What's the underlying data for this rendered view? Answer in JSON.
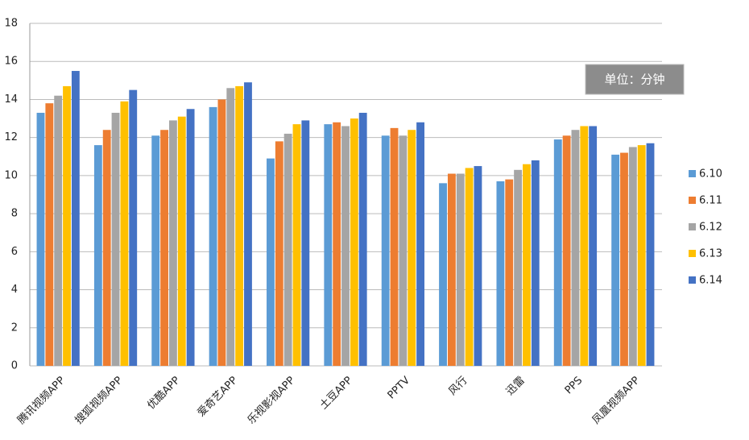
{
  "chart_data": {
    "type": "bar",
    "categories": [
      "腾讯视频APP",
      "搜狐视频APP",
      "优酷APP",
      "爱奇艺APP",
      "乐视影视APP",
      "土豆APP",
      "PPTV",
      "风行",
      "迅雷",
      "PPS",
      "凤凰视频APP"
    ],
    "series": [
      {
        "name": "6.10",
        "color": "#5b9bd5",
        "values": [
          13.3,
          11.6,
          12.1,
          13.6,
          10.9,
          12.7,
          12.1,
          9.6,
          9.7,
          11.9,
          11.1
        ]
      },
      {
        "name": "6.11",
        "color": "#ed7d31",
        "values": [
          13.8,
          12.4,
          12.4,
          14.0,
          11.8,
          12.8,
          12.5,
          10.1,
          9.8,
          12.1,
          11.2
        ]
      },
      {
        "name": "6.12",
        "color": "#a5a5a5",
        "values": [
          14.2,
          13.3,
          12.9,
          14.6,
          12.2,
          12.6,
          12.1,
          10.1,
          10.3,
          12.4,
          11.5
        ]
      },
      {
        "name": "6.13",
        "color": "#ffc000",
        "values": [
          14.7,
          13.9,
          13.1,
          14.7,
          12.7,
          13.0,
          12.4,
          10.4,
          10.6,
          12.6,
          11.6
        ]
      },
      {
        "name": "6.14",
        "color": "#4472c4",
        "values": [
          15.5,
          14.5,
          13.5,
          14.9,
          12.9,
          13.3,
          12.8,
          10.5,
          10.8,
          12.6,
          11.7
        ]
      }
    ],
    "annotation": "单位：分钟",
    "ylim": [
      0,
      18
    ],
    "yticks": [
      0,
      2,
      4,
      6,
      8,
      10,
      12,
      14,
      16,
      18
    ],
    "grid": true,
    "legend": "right"
  }
}
